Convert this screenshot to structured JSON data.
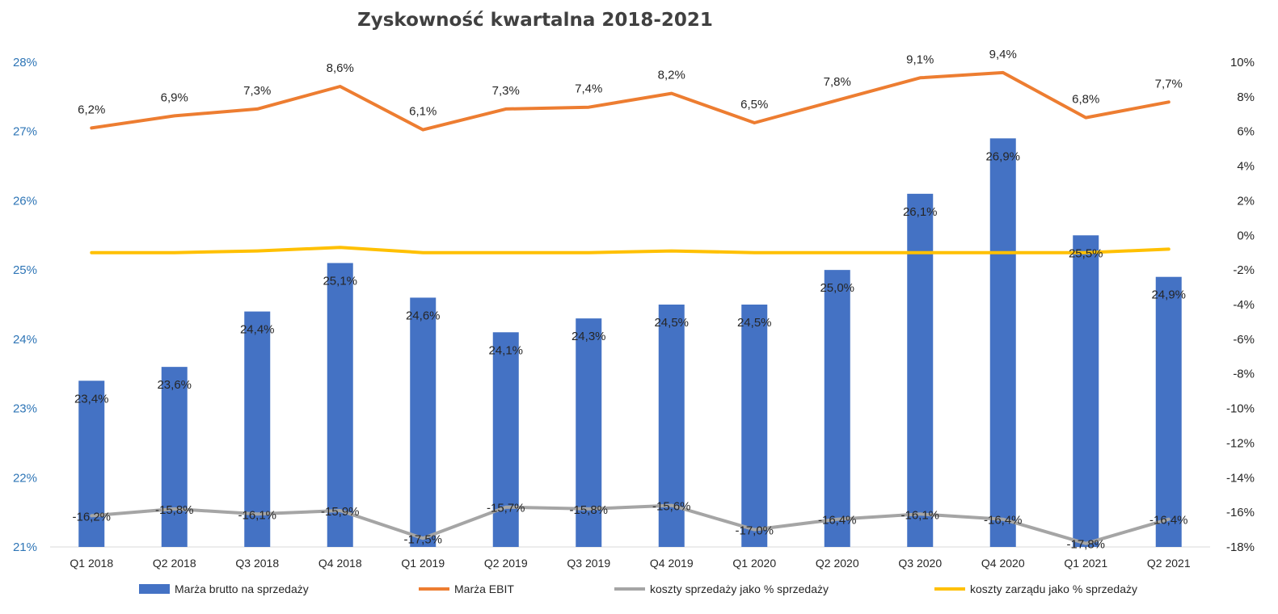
{
  "chart_data": {
    "type": "bar",
    "title": "Zyskowność kwartalna 2018-2021",
    "categories": [
      "Q1 2018",
      "Q2 2018",
      "Q3 2018",
      "Q4 2018",
      "Q1 2019",
      "Q2 2019",
      "Q3 2019",
      "Q4 2019",
      "Q1 2020",
      "Q2 2020",
      "Q3 2020",
      "Q4 2020",
      "Q1 2021",
      "Q2 2021"
    ],
    "y_left": {
      "min": 21,
      "max": 28,
      "step": 1,
      "ticks": [
        "21%",
        "22%",
        "23%",
        "24%",
        "25%",
        "26%",
        "27%",
        "28%"
      ]
    },
    "y_right": {
      "min": -18,
      "max": 10,
      "step": 2,
      "ticks": [
        "-18%",
        "-16%",
        "-14%",
        "-12%",
        "-10%",
        "-8%",
        "-6%",
        "-4%",
        "-2%",
        "0%",
        "2%",
        "4%",
        "6%",
        "8%",
        "10%"
      ]
    },
    "grid": false,
    "legend_position": "bottom",
    "series": [
      {
        "name": "Marża brutto na sprzedaży",
        "kind": "bar",
        "axis": "left",
        "color": "#4472c4",
        "values": [
          23.4,
          23.6,
          24.4,
          25.1,
          24.6,
          24.1,
          24.3,
          24.5,
          24.5,
          25.0,
          26.1,
          26.9,
          25.5,
          24.9
        ],
        "labels": [
          "23,4%",
          "23,6%",
          "24,4%",
          "25,1%",
          "24,6%",
          "24,1%",
          "24,3%",
          "24,5%",
          "24,5%",
          "25,0%",
          "26,1%",
          "26,9%",
          "25,5%",
          "24,9%"
        ]
      },
      {
        "name": "Marża EBIT",
        "kind": "line",
        "axis": "right",
        "color": "#ed7d31",
        "values": [
          6.2,
          6.9,
          7.3,
          8.6,
          6.1,
          7.3,
          7.4,
          8.2,
          6.5,
          7.8,
          9.1,
          9.4,
          6.8,
          7.7
        ],
        "labels": [
          "6,2%",
          "6,9%",
          "7,3%",
          "8,6%",
          "6,1%",
          "7,3%",
          "7,4%",
          "8,2%",
          "6,5%",
          "7,8%",
          "9,1%",
          "9,4%",
          "6,8%",
          "7,7%"
        ]
      },
      {
        "name": "koszty sprzedaży jako % sprzedaży",
        "kind": "line",
        "axis": "right",
        "color": "#a5a5a5",
        "values": [
          -16.2,
          -15.8,
          -16.1,
          -15.9,
          -17.5,
          -15.7,
          -15.8,
          -15.6,
          -17.0,
          -16.4,
          -16.1,
          -16.4,
          -17.8,
          -16.4
        ],
        "labels": [
          "-16,2%",
          "-15,8%",
          "-16,1%",
          "-15,9%",
          "-17,5%",
          "-15,7%",
          "-15,8%",
          "-15,6%",
          "-17,0%",
          "-16,4%",
          "-16,1%",
          "-16,4%",
          "-17,8%",
          "-16,4%"
        ]
      },
      {
        "name": "koszty zarządu jako % sprzedaży",
        "kind": "line",
        "axis": "right",
        "color": "#ffc000",
        "values": [
          -1.0,
          -1.0,
          -0.9,
          -0.7,
          -1.0,
          -1.0,
          -1.0,
          -0.9,
          -1.0,
          -1.0,
          -1.0,
          -1.0,
          -1.0,
          -0.8
        ],
        "labels": []
      }
    ]
  }
}
